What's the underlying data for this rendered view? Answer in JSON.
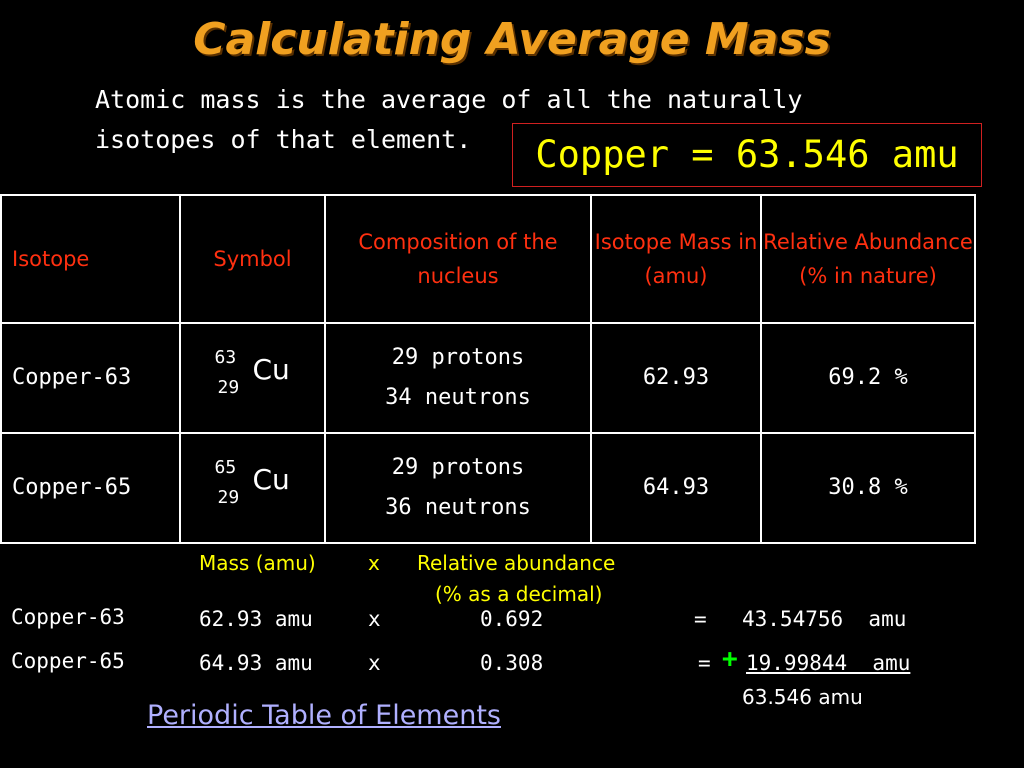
{
  "title": "Calculating Average Mass",
  "intro": "Atomic mass is the average of all the naturally isotopes of that element.",
  "callout": "Copper = 63.546 amu",
  "table": {
    "headers": [
      "Isotope",
      "Symbol",
      "Composition of the nucleus",
      "Isotope Mass in (amu)",
      "Relative Abundance (% in nature)"
    ],
    "rows": [
      {
        "isotope": "Copper-63",
        "mass_number": "63",
        "atomic_number": "29",
        "element": "Cu",
        "protons": "29 protons",
        "neutrons": "34 neutrons",
        "mass": "62.93",
        "abundance": "69.2 %"
      },
      {
        "isotope": "Copper-65",
        "mass_number": "65",
        "atomic_number": "29",
        "element": "Cu",
        "protons": "29 protons",
        "neutrons": "36 neutrons",
        "mass": "64.93",
        "abundance": "30.8 %"
      }
    ]
  },
  "calc": {
    "header_mass": "Mass (amu)",
    "header_times": "x",
    "header_abundance_line1": "Relative abundance",
    "header_abundance_line2": "(% as a decimal)",
    "rows": [
      {
        "label": "Copper-63",
        "mass": "62.93 amu",
        "times": "x",
        "decimal": "0.692",
        "equals": "=",
        "result": "43.54756  amu"
      },
      {
        "label": "Copper-65",
        "mass": "64.93 amu",
        "times": "x",
        "decimal": "0.308",
        "equals": "=",
        "plus": "+",
        "result": "19.99844  amu"
      }
    ],
    "total": "63.546 amu"
  },
  "link": "Periodic Table of Elements",
  "colors": {
    "title": "#f0a020",
    "callout_text": "#ffff00",
    "header_text": "#ff3010",
    "calc_header": "#ffff00",
    "calc_abundance": "#ffff00",
    "plus": "#00ff00",
    "link": "#b0b0ff"
  }
}
